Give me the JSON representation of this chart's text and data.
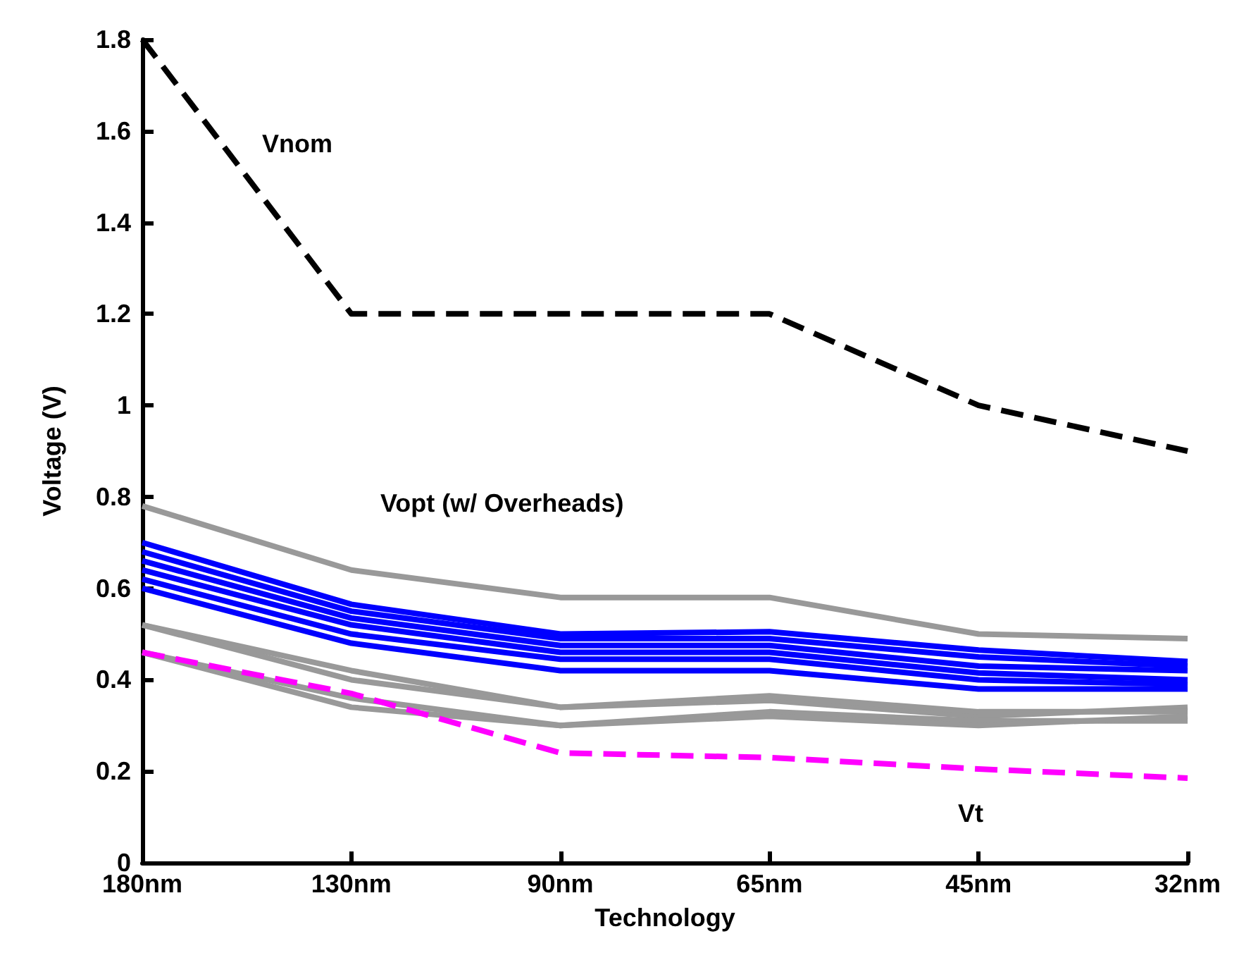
{
  "chart_data": {
    "type": "line",
    "xlabel": "Technology",
    "ylabel": "Voltage (V)",
    "categories": [
      "180nm",
      "130nm",
      "90nm",
      "65nm",
      "45nm",
      "32nm"
    ],
    "series": [
      {
        "color": "#000000",
        "line_style": "dashed",
        "values": [
          1.8,
          1.2,
          1.2,
          1.2,
          1.0,
          0.9
        ]
      },
      {
        "color": "#999999",
        "values": [
          0.78,
          0.64,
          0.58,
          0.58,
          0.5,
          0.49
        ]
      },
      {
        "color": "#0000ff",
        "values": [
          0.7,
          0.565,
          0.5,
          0.505,
          0.465,
          0.44
        ]
      },
      {
        "color": "#0000ff",
        "values": [
          0.68,
          0.55,
          0.49,
          0.49,
          0.45,
          0.43
        ]
      },
      {
        "color": "#0000ff",
        "values": [
          0.66,
          0.535,
          0.475,
          0.475,
          0.43,
          0.42
        ]
      },
      {
        "color": "#0000ff",
        "values": [
          0.64,
          0.52,
          0.46,
          0.46,
          0.415,
          0.4
        ]
      },
      {
        "color": "#0000ff",
        "values": [
          0.62,
          0.5,
          0.445,
          0.445,
          0.4,
          0.39
        ]
      },
      {
        "color": "#0000ff",
        "values": [
          0.6,
          0.48,
          0.42,
          0.42,
          0.38,
          0.38
        ]
      },
      {
        "color": "#999999",
        "values": [
          0.52,
          0.42,
          0.34,
          0.355,
          0.32,
          0.34
        ]
      },
      {
        "color": "#999999",
        "values": [
          0.52,
          0.4,
          0.34,
          0.365,
          0.33,
          0.33
        ]
      },
      {
        "color": "#999999",
        "values": [
          0.46,
          0.36,
          0.3,
          0.33,
          0.31,
          0.31
        ]
      },
      {
        "color": "#999999",
        "values": [
          0.46,
          0.34,
          0.3,
          0.32,
          0.3,
          0.32
        ]
      },
      {
        "color": "#ff00ff",
        "line_style": "dashed",
        "values": [
          0.46,
          0.37,
          0.24,
          0.23,
          0.205,
          0.185
        ]
      }
    ],
    "annotations": [
      "Vnom",
      "Vopt (w/ Overheads)",
      "Vt"
    ],
    "ylim": [
      0,
      1.8
    ],
    "yticks": [
      0,
      0.2,
      0.4,
      0.6,
      0.8,
      1,
      1.2,
      1.4,
      1.6,
      1.8
    ],
    "grid": false,
    "marker": "none"
  }
}
